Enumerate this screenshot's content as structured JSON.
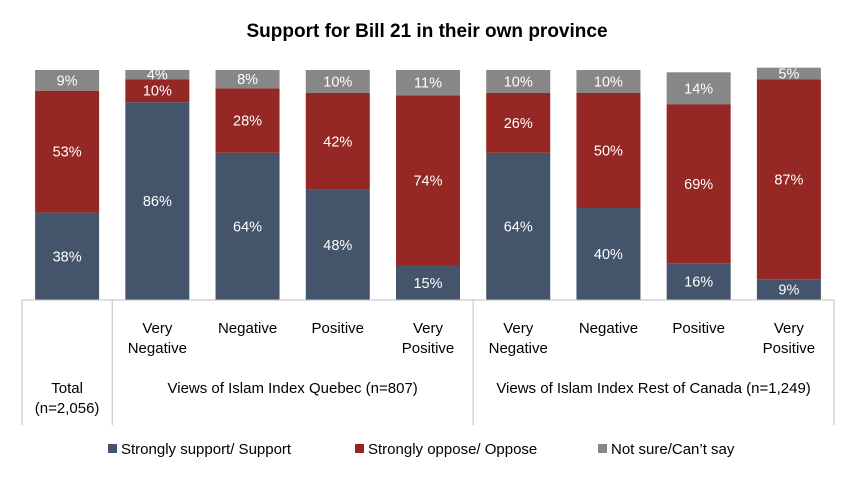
{
  "chart_data": {
    "type": "bar",
    "stacked": true,
    "percent": true,
    "title": "Support for Bill 21 in their own province",
    "categories": [
      "Total (n=2,056)",
      "Very Negative",
      "Negative",
      "Positive",
      "Very Positive",
      "Very Negative",
      "Negative",
      "Positive",
      "Very Positive"
    ],
    "category_labels": [
      [
        "Total",
        "(n=2,056)"
      ],
      [
        "Very",
        "Negative"
      ],
      [
        "Negative"
      ],
      [
        "Positive"
      ],
      [
        "Very",
        "Positive"
      ],
      [
        "Very",
        "Negative"
      ],
      [
        "Negative"
      ],
      [
        "Positive"
      ],
      [
        "Very",
        "Positive"
      ]
    ],
    "groups": [
      {
        "label": "Views of Islam Index Quebec (n=807)",
        "start": 1,
        "end": 4
      },
      {
        "label": "Views of Islam Index Rest of Canada (n=1,249)",
        "start": 5,
        "end": 8
      }
    ],
    "series": [
      {
        "name": "Strongly support/ Support",
        "color": "#44546a",
        "values": [
          38,
          86,
          64,
          48,
          15,
          64,
          40,
          16,
          9
        ]
      },
      {
        "name": "Strongly oppose/ Oppose",
        "color": "#952724",
        "values": [
          53,
          10,
          28,
          42,
          74,
          26,
          50,
          69,
          87
        ]
      },
      {
        "name": "Not sure/Can’t say",
        "color": "#878787",
        "values": [
          9,
          4,
          8,
          10,
          11,
          10,
          10,
          14,
          5
        ]
      }
    ],
    "value_suffix": "%",
    "ylim": [
      0,
      100
    ],
    "legend_position": "bottom",
    "grid": false
  }
}
